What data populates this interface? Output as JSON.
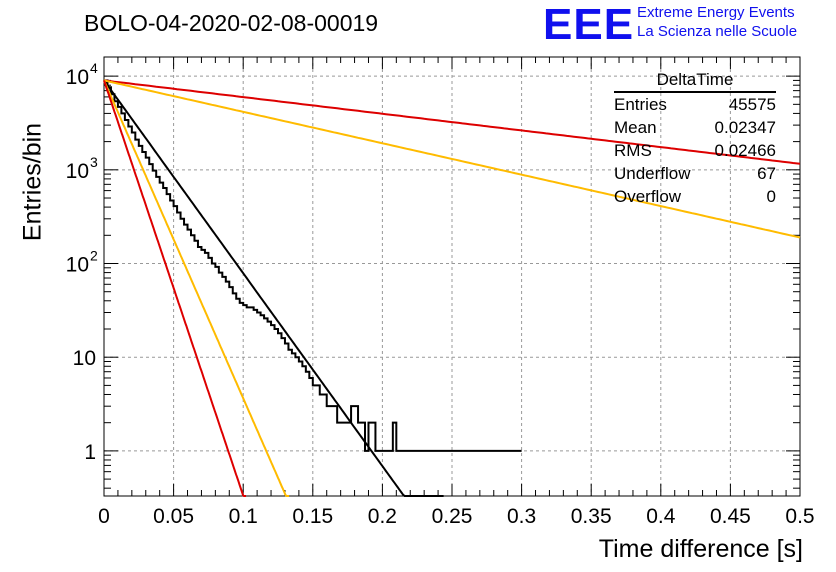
{
  "header": {
    "title": "BOLO-04-2020-02-08-00019",
    "logo": "EEE",
    "org_line1": "Extreme Energy Events",
    "org_line2": "La Scienza nelle Scuole",
    "logo_color": "#1010ee"
  },
  "stats_box": {
    "title": "DeltaTime",
    "rows": [
      {
        "label": "Entries",
        "value": "45575"
      },
      {
        "label": "Mean",
        "value": "0.02347"
      },
      {
        "label": "RMS",
        "value": "0.02466"
      },
      {
        "label": "Underflow",
        "value": "67"
      },
      {
        "label": "Overflow",
        "value": "0"
      }
    ]
  },
  "chart_data": {
    "type": "line",
    "title": "BOLO-04-2020-02-08-00019",
    "xlabel": "Time difference [s]",
    "ylabel": "Entries/bin",
    "xlim": [
      0,
      0.5
    ],
    "ylim": [
      0.33,
      16000
    ],
    "yscale": "log",
    "grid": true,
    "legend": "top-right stats box",
    "xticks": [
      "0",
      "0.05",
      "0.1",
      "0.15",
      "0.2",
      "0.25",
      "0.3",
      "0.35",
      "0.4",
      "0.45",
      "0.5"
    ],
    "yticks": [
      {
        "value": 1,
        "label": "1",
        "pow": false
      },
      {
        "value": 10,
        "label": "10",
        "pow": false
      },
      {
        "value": 100,
        "label": "10",
        "pow": true,
        "exp": "2"
      },
      {
        "value": 1000,
        "label": "10",
        "pow": true,
        "exp": "3"
      },
      {
        "value": 10000,
        "label": "10",
        "pow": true,
        "exp": "4"
      }
    ],
    "histogram": {
      "color": "#000000",
      "bin_width": 0.0025,
      "counts": [
        9000,
        7600,
        6400,
        5400,
        4700,
        4000,
        3400,
        2900,
        2500,
        2100,
        1800,
        1550,
        1350,
        1150,
        980,
        840,
        730,
        640,
        550,
        470,
        410,
        350,
        300,
        260,
        230,
        200,
        175,
        150,
        140,
        130,
        115,
        100,
        92,
        80,
        72,
        64,
        56,
        48,
        42,
        38,
        36,
        34,
        34,
        32,
        30,
        28,
        26,
        24,
        22,
        20,
        18,
        16,
        14,
        12,
        11,
        10,
        9,
        8,
        7,
        6,
        5,
        5,
        4,
        4,
        3,
        3,
        3,
        2,
        2,
        2,
        2,
        3,
        3,
        2,
        2,
        1,
        2,
        2,
        1,
        1,
        1,
        1,
        1,
        2,
        1,
        1,
        1,
        1,
        1,
        1,
        1,
        1,
        1,
        1,
        1,
        1,
        1,
        1,
        1,
        1,
        1,
        1,
        1,
        1,
        1,
        1,
        1,
        1,
        1,
        1,
        1,
        1,
        1,
        1,
        1,
        1,
        1,
        1,
        1,
        1
      ]
    },
    "series": [
      {
        "color": "#000000",
        "A": 9000,
        "tau": 0.0211,
        "x0": 0,
        "x1": 0.244
      },
      {
        "color": "#dd0000",
        "A": 9000,
        "tau": 0.244,
        "x0": 0,
        "x1": 0.5
      },
      {
        "color": "#ffbb00",
        "A": 9000,
        "tau": 0.1295,
        "x0": 0,
        "x1": 0.5
      },
      {
        "color": "#ffbb00",
        "A": 9000,
        "tau": 0.0128,
        "x0": 0,
        "x1": 0.133
      },
      {
        "color": "#dd0000",
        "A": 9000,
        "tau": 0.0098,
        "x0": 0,
        "x1": 0.102
      }
    ]
  }
}
